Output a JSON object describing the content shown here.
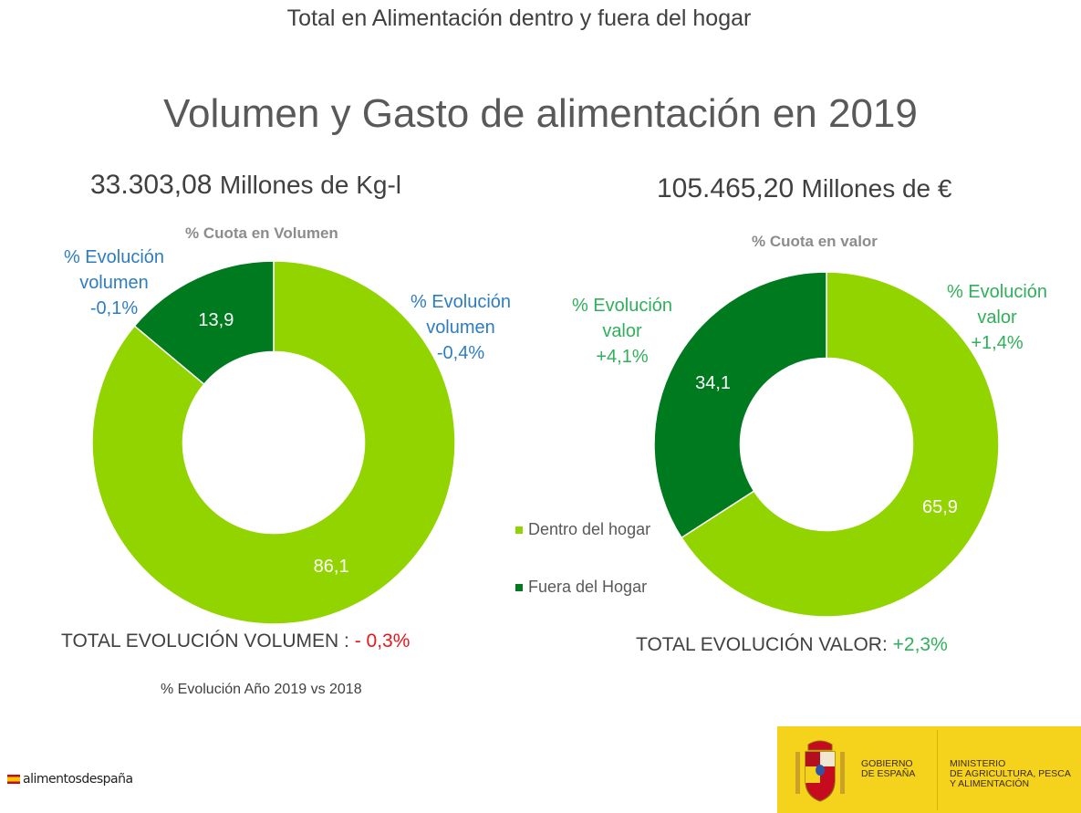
{
  "header": {
    "title": "Total en Alimentación dentro y fuera del hogar"
  },
  "main_title": "Volumen y Gasto de alimentación en 2019",
  "left": {
    "total_number": "33.303,08",
    "total_unit": "Millones de Kg-l",
    "cuota_label": "% Cuota en Volumen",
    "evo_fuera": [
      "% Evolución",
      "volumen",
      "-0,1%"
    ],
    "evo_dentro": [
      "% Evolución",
      "volumen",
      "-0,4%"
    ],
    "total_label": "TOTAL EVOLUCIÓN VOLUMEN :",
    "total_value": "- 0,3%"
  },
  "right": {
    "total_number": "105.465,20",
    "total_unit": "Millones de €",
    "cuota_label": "% Cuota en valor",
    "evo_fuera": [
      "% Evolución",
      "valor",
      "+4,1%"
    ],
    "evo_dentro": [
      "% Evolución",
      "valor",
      "+1,4%"
    ],
    "total_label": "TOTAL EVOLUCIÓN VALOR:",
    "total_value": "+2,3%"
  },
  "footnote": "% Evolución Año 2019 vs 2018",
  "legend": [
    {
      "label": "Dentro del hogar",
      "color": "#92d400"
    },
    {
      "label": "Fuera del Hogar",
      "color": "#007a1e"
    }
  ],
  "colors": {
    "dentro": "#92d400",
    "fuera": "#007a1e",
    "negative": "#e8161b",
    "positive": "#2fb05a",
    "blue": "#2e7dc2"
  },
  "chart_data": [
    {
      "type": "pie",
      "variant": "donut",
      "title": "% Cuota en Volumen",
      "categories": [
        "Dentro del hogar",
        "Fuera del Hogar"
      ],
      "values": [
        86.1,
        13.9
      ],
      "labels": [
        "86,1",
        "13,9"
      ]
    },
    {
      "type": "pie",
      "variant": "donut",
      "title": "% Cuota en valor",
      "categories": [
        "Dentro del hogar",
        "Fuera del Hogar"
      ],
      "values": [
        65.9,
        34.1
      ],
      "labels": [
        "65,9",
        "34,1"
      ]
    }
  ],
  "branding": {
    "logo_text": "alimentosdespaña",
    "gov_line1": "GOBIERNO",
    "gov_line2": "DE ESPAÑA",
    "ministry_line1": "MINISTERIO",
    "ministry_line2": "DE AGRICULTURA, PESCA",
    "ministry_line3": "Y ALIMENTACIÓN"
  }
}
